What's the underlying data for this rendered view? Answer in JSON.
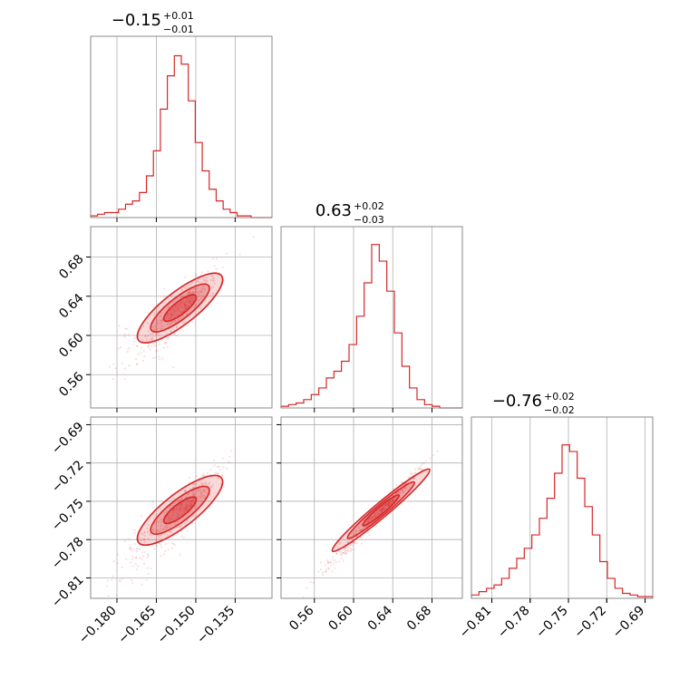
{
  "chart_data": {
    "type": "corner",
    "accent_color": "#d62728",
    "grid": true,
    "parameters": [
      {
        "range": [
          -0.19,
          -0.121
        ],
        "ticks": [
          -0.18,
          -0.165,
          -0.15,
          -0.135
        ],
        "tick_labels": [
          "−0.180",
          "−0.165",
          "−0.150",
          "−0.135"
        ],
        "title": {
          "median": "−0.15",
          "plus": "+0.01",
          "minus": "−0.01"
        },
        "histogram": [
          0.01,
          0.02,
          0.03,
          0.03,
          0.05,
          0.08,
          0.1,
          0.15,
          0.25,
          0.4,
          0.65,
          0.85,
          0.97,
          0.92,
          0.7,
          0.45,
          0.28,
          0.17,
          0.1,
          0.05,
          0.03,
          0.01,
          0.01,
          0,
          0,
          0
        ]
      },
      {
        "range": [
          0.526,
          0.711
        ],
        "ticks": [
          0.56,
          0.6,
          0.64,
          0.68
        ],
        "tick_labels": [
          "0.56",
          "0.60",
          "0.64",
          "0.68"
        ],
        "title": {
          "median": "0.63",
          "plus": "+0.02",
          "minus": "−0.03"
        },
        "histogram": [
          0.01,
          0.02,
          0.03,
          0.05,
          0.08,
          0.12,
          0.18,
          0.22,
          0.28,
          0.38,
          0.55,
          0.75,
          0.98,
          0.88,
          0.7,
          0.45,
          0.25,
          0.12,
          0.05,
          0.02,
          0.01,
          0,
          0,
          0
        ]
      },
      {
        "range": [
          -0.826,
          -0.684
        ],
        "ticks": [
          -0.81,
          -0.78,
          -0.75,
          -0.72,
          -0.69
        ],
        "tick_labels": [
          "−0.81",
          "−0.78",
          "−0.75",
          "−0.72",
          "−0.69"
        ],
        "title": {
          "median": "−0.76",
          "plus": "+0.02",
          "minus": "−0.02"
        },
        "histogram": [
          0.02,
          0.04,
          0.06,
          0.08,
          0.12,
          0.18,
          0.24,
          0.3,
          0.38,
          0.48,
          0.6,
          0.75,
          0.92,
          0.88,
          0.72,
          0.55,
          0.38,
          0.22,
          0.12,
          0.06,
          0.03,
          0.02,
          0.01,
          0.01
        ]
      }
    ],
    "correlations": {
      "p0_p1": 0.9,
      "p0_p2": 0.9,
      "p1_p2": 0.99
    }
  }
}
